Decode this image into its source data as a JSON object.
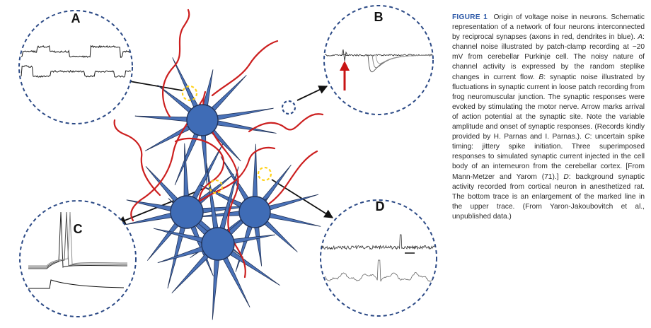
{
  "figure": {
    "panel_labels": [
      "A",
      "B",
      "C",
      "D"
    ],
    "colors": {
      "axon": "#cc1f1f",
      "dendrite": "#4a72b8",
      "soma": "#3f6cb6",
      "outline": "#22345a",
      "lens_border": "#2c4a86",
      "synapse_marker": "#ffd21a",
      "arrow": "#111111",
      "stimulus_arrow": "#c81414"
    }
  },
  "caption": {
    "label": "FIGURE 1",
    "title": "Origin of voltage noise in neurons.",
    "lead": "Schematic representation of a network of four neurons interconnected by reciprocal synapses (axons in red, dendrites in blue). ",
    "a_letter": "A",
    "a_text": ": channel noise illustrated by patch-clamp recording at −20 mV from cerebellar Purkinje cell. The noisy nature of channel activity is expressed by the random steplike changes in current flow. ",
    "b_letter": "B",
    "b_text": ": synaptic noise illustrated by fluctuations in synaptic current in loose patch recording from frog neuromuscular junction. The synaptic responses were evoked by stimulating the motor nerve. Arrow marks arrival of action potential at the synaptic site. Note the variable amplitude and onset of synaptic responses. (Records kindly provided by H. Parnas and I. Parnas.). ",
    "c_letter": "C",
    "c_text": ": uncertain spike timing: jittery spike initiation. Three superimposed responses to simulated synaptic current injected in the cell body of an interneuron from the cerebellar cortex. [From Mann-Metzer and Yarom (71).] ",
    "d_letter": "D",
    "d_text": ": background synaptic activity recorded from cortical neuron in anesthetized rat. The bottom trace is an enlargement of the marked line in the upper trace. (From Yaron-Jakoubovitch et al., unpublished data.)"
  }
}
